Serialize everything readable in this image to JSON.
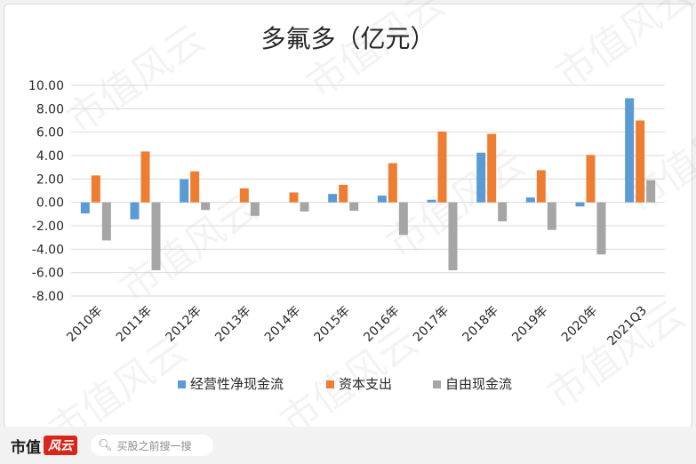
{
  "header": {
    "title": "多氟多（亿元）"
  },
  "footer": {
    "logo_text": "市值",
    "logo_brand": "风云",
    "search_placeholder": "买股之前搜一搜"
  },
  "watermark_text": "市值风云",
  "chart_data": {
    "type": "bar",
    "title": "多氟多（亿元）",
    "categories": [
      "2010年",
      "2011年",
      "2012年",
      "2013年",
      "2014年",
      "2015年",
      "2016年",
      "2017年",
      "2018年",
      "2019年",
      "2020年",
      "2021Q3"
    ],
    "series": [
      {
        "name": "经营性净现金流",
        "color": "#5b9bd5",
        "values": [
          -0.95,
          -1.45,
          1.98,
          0.0,
          0.0,
          0.72,
          0.58,
          0.22,
          4.25,
          0.42,
          -0.35,
          8.9
        ]
      },
      {
        "name": "资本支出",
        "color": "#ed7d31",
        "values": [
          2.3,
          4.35,
          2.65,
          1.2,
          0.85,
          1.5,
          3.35,
          6.05,
          5.85,
          2.75,
          4.05,
          7.0
        ]
      },
      {
        "name": "自由现金流",
        "color": "#a5a5a5",
        "values": [
          -3.25,
          -5.8,
          -0.65,
          -1.15,
          -0.78,
          -0.72,
          -2.78,
          -5.8,
          -1.62,
          -2.35,
          -4.45,
          1.9
        ]
      }
    ],
    "ylim": [
      -8,
      10
    ],
    "yticks": [
      "10.00",
      "8.00",
      "6.00",
      "4.00",
      "2.00",
      "0.00",
      "-2.00",
      "-4.00",
      "-6.00",
      "-8.00"
    ],
    "grid": true,
    "legend_position": "bottom"
  }
}
